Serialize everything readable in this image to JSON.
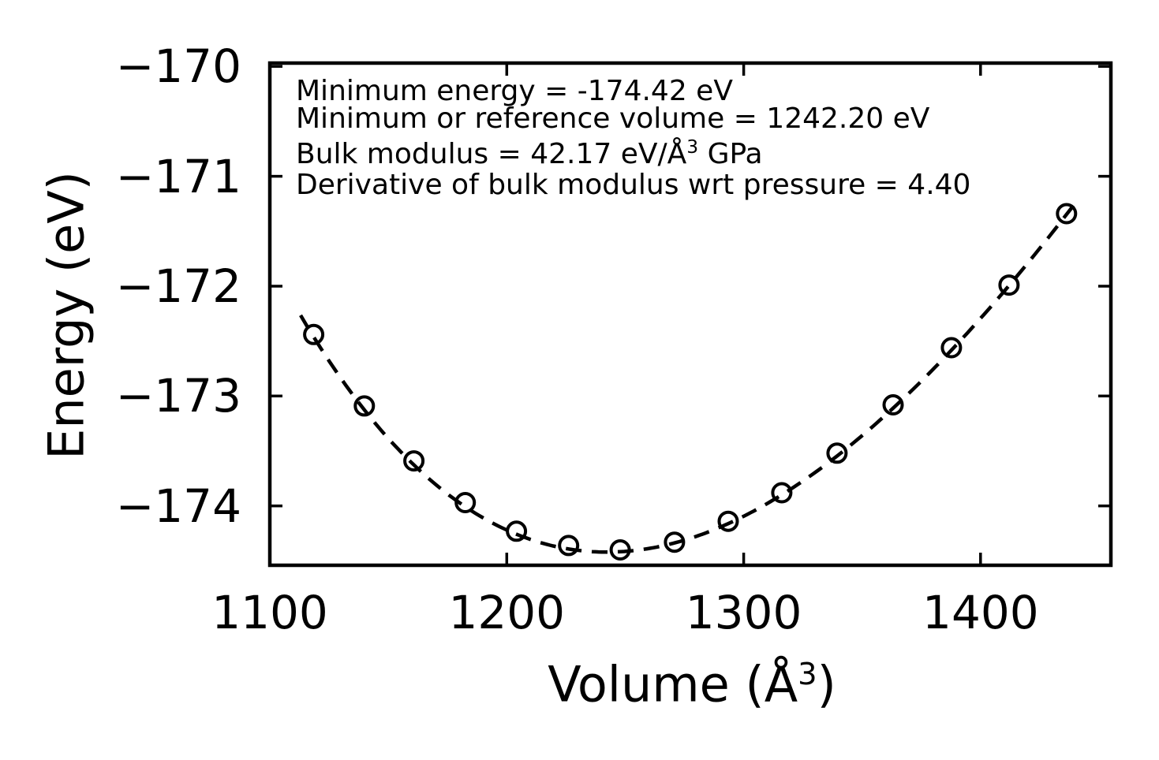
{
  "figure": {
    "background": "#ffffff",
    "foreground": "#000000"
  },
  "chart_data": {
    "type": "scatter",
    "title": "",
    "description": "Energy vs volume equation-of-state curve: open-circle data points with dashed Birch-Murnaghan fit",
    "ylabel": "Energy (eV)",
    "xlabel_parts": {
      "pre": "Volume (Å",
      "sup": "3",
      "post": ")"
    },
    "xlim": [
      1100,
      1455
    ],
    "ylim": [
      -174.54,
      -169.97
    ],
    "xticks": [
      1100,
      1200,
      1300,
      1400
    ],
    "yticks": [
      -170,
      -171,
      -172,
      -173,
      -174
    ],
    "grid": false,
    "legend": false,
    "tick_style": "inside-all-spines",
    "series": [
      {
        "name": "calculated-energies",
        "type": "scatter",
        "marker": "open-circle",
        "color": "#000000",
        "x": [
          1118.5,
          1139.9,
          1160.8,
          1182.5,
          1204.1,
          1226.1,
          1247.9,
          1270.8,
          1293.5,
          1316.1,
          1339.4,
          1363.1,
          1387.7,
          1412.0,
          1436.3
        ],
        "y": [
          -172.44,
          -173.09,
          -173.59,
          -173.97,
          -174.23,
          -174.36,
          -174.4,
          -174.33,
          -174.14,
          -173.88,
          -173.52,
          -173.08,
          -172.56,
          -171.99,
          -171.34
        ]
      },
      {
        "name": "birch-murnaghan-fit",
        "type": "line",
        "style": "dashed",
        "color": "#000000",
        "fit_params": {
          "E0_eV": -174.42,
          "V0_A3": 1242.2,
          "B0_GPa": 42.17,
          "Bprime": 4.4,
          "v_start": 1113,
          "v_end": 1441
        }
      }
    ],
    "annotation": {
      "line1": "Minimum energy = -174.42 eV",
      "line2": "Minimum or reference volume = 1242.20 eV",
      "line3_pre": "Bulk modulus = 42.17 eV/Å",
      "line3_sup": "3",
      "line3_post": " GPa",
      "line4": "Derivative of bulk modulus wrt pressure = 4.40"
    }
  }
}
